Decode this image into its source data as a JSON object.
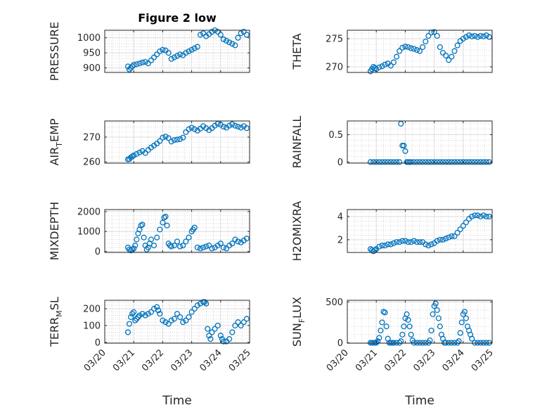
{
  "chart_data": [
    {
      "type": "scatter",
      "title": "Figure 2 low",
      "xlabel": "",
      "ylabel": "PRESSURE",
      "ylabel_sub": "",
      "ylabel_tail": "",
      "ylim": [
        885,
        1025
      ],
      "yticks": [
        900,
        950,
        1000
      ],
      "xlim": [
        0,
        5
      ],
      "xticks": [],
      "xticklabels": [],
      "grid": "on",
      "x": [
        0.8,
        0.85,
        0.9,
        0.95,
        1.0,
        1.1,
        1.2,
        1.3,
        1.4,
        1.5,
        1.6,
        1.7,
        1.8,
        1.9,
        2.0,
        2.1,
        2.2,
        2.3,
        2.4,
        2.5,
        2.6,
        2.7,
        2.8,
        2.9,
        3.0,
        3.1,
        3.2,
        3.3,
        3.4,
        3.5,
        3.6,
        3.7,
        3.8,
        3.9,
        4.0,
        4.1,
        4.2,
        4.3,
        4.4,
        4.5,
        4.6,
        4.7,
        4.8,
        4.9
      ],
      "y": [
        905,
        895,
        900,
        905,
        910,
        912,
        915,
        918,
        920,
        915,
        925,
        935,
        945,
        955,
        960,
        958,
        950,
        930,
        935,
        940,
        945,
        942,
        950,
        955,
        960,
        965,
        970,
        1010,
        1015,
        1005,
        1012,
        1020,
        1025,
        1020,
        1010,
        995,
        990,
        985,
        980,
        975,
        1000,
        1015,
        1020,
        1010
      ]
    },
    {
      "type": "scatter",
      "title": "",
      "xlabel": "",
      "ylabel": "THETA",
      "ylabel_sub": "",
      "ylabel_tail": "",
      "ylim": [
        269,
        276.5
      ],
      "yticks": [
        270,
        275
      ],
      "xlim": [
        0,
        5
      ],
      "xticks": [],
      "xticklabels": [],
      "grid": "on",
      "x": [
        0.8,
        0.85,
        0.9,
        0.95,
        1.0,
        1.1,
        1.2,
        1.3,
        1.4,
        1.5,
        1.6,
        1.7,
        1.8,
        1.9,
        2.0,
        2.1,
        2.2,
        2.3,
        2.4,
        2.5,
        2.6,
        2.7,
        2.8,
        2.9,
        3.0,
        3.1,
        3.2,
        3.3,
        3.4,
        3.5,
        3.6,
        3.7,
        3.8,
        3.9,
        4.0,
        4.1,
        4.2,
        4.3,
        4.4,
        4.5,
        4.6,
        4.7,
        4.8,
        4.9
      ],
      "y": [
        269.2,
        269.6,
        270.0,
        269.8,
        269.6,
        269.9,
        270.1,
        270.4,
        270.6,
        270.2,
        270.8,
        271.8,
        272.8,
        273.4,
        273.6,
        273.5,
        273.3,
        273.2,
        273.0,
        272.8,
        273.5,
        274.5,
        275.5,
        276.1,
        276.2,
        275.5,
        273.5,
        272.5,
        272.0,
        271.2,
        271.8,
        272.8,
        273.8,
        274.6,
        275.0,
        275.3,
        275.6,
        275.4,
        275.5,
        275.3,
        275.5,
        275.4,
        275.6,
        275.3
      ]
    },
    {
      "type": "scatter",
      "title": "",
      "xlabel": "",
      "ylabel": "AIR",
      "ylabel_sub": "T",
      "ylabel_tail": "EMP",
      "ylim": [
        259.5,
        276.5
      ],
      "yticks": [
        260,
        270
      ],
      "xlim": [
        0,
        5
      ],
      "xticks": [],
      "xticklabels": [],
      "grid": "on",
      "x": [
        0.8,
        0.85,
        0.9,
        0.95,
        1.0,
        1.1,
        1.2,
        1.3,
        1.4,
        1.5,
        1.6,
        1.7,
        1.8,
        1.9,
        2.0,
        2.1,
        2.2,
        2.3,
        2.4,
        2.5,
        2.6,
        2.7,
        2.8,
        2.9,
        3.0,
        3.1,
        3.2,
        3.3,
        3.4,
        3.5,
        3.6,
        3.7,
        3.8,
        3.9,
        4.0,
        4.1,
        4.2,
        4.3,
        4.4,
        4.5,
        4.6,
        4.7,
        4.8,
        4.9
      ],
      "y": [
        261.0,
        261.2,
        261.8,
        262.2,
        262.6,
        263.2,
        263.8,
        264.4,
        263.6,
        264.8,
        265.8,
        266.6,
        267.4,
        268.4,
        269.8,
        270.2,
        269.6,
        268.2,
        268.8,
        269.0,
        269.2,
        269.8,
        272.0,
        273.2,
        273.8,
        273.2,
        272.6,
        273.4,
        274.4,
        273.6,
        272.8,
        273.6,
        274.6,
        275.4,
        275.0,
        274.2,
        273.8,
        274.6,
        275.2,
        274.6,
        274.2,
        273.8,
        274.4,
        273.6
      ]
    },
    {
      "type": "scatter",
      "title": "",
      "xlabel": "",
      "ylabel": "RAINFALL",
      "ylabel_sub": "",
      "ylabel_tail": "",
      "ylim": [
        -0.02,
        0.75
      ],
      "yticks": [
        0,
        0.5
      ],
      "xlim": [
        0,
        5
      ],
      "xticks": [],
      "xticklabels": [],
      "grid": "on",
      "x": [
        0.8,
        0.9,
        1.0,
        1.1,
        1.2,
        1.3,
        1.4,
        1.5,
        1.6,
        1.7,
        1.8,
        1.85,
        1.9,
        1.95,
        2.0,
        2.05,
        2.1,
        2.15,
        2.2,
        2.3,
        2.4,
        2.5,
        2.6,
        2.7,
        2.8,
        2.9,
        3.0,
        3.1,
        3.2,
        3.3,
        3.4,
        3.5,
        3.6,
        3.7,
        3.8,
        3.9,
        4.0,
        4.1,
        4.2,
        4.3,
        4.4,
        4.5,
        4.6,
        4.7,
        4.8,
        4.9
      ],
      "y": [
        0,
        0,
        0,
        0,
        0,
        0,
        0,
        0,
        0,
        0,
        0,
        0.7,
        0.3,
        0.3,
        0.2,
        0,
        0,
        0,
        0,
        0,
        0,
        0,
        0,
        0,
        0,
        0,
        0,
        0,
        0,
        0,
        0,
        0,
        0,
        0,
        0,
        0,
        0,
        0,
        0,
        0,
        0,
        0,
        0,
        0,
        0,
        0
      ]
    },
    {
      "type": "scatter",
      "title": "",
      "xlabel": "",
      "ylabel": "MIXDEPTH",
      "ylabel_sub": "",
      "ylabel_tail": "",
      "ylim": [
        -50,
        2100
      ],
      "yticks": [
        0,
        1000,
        2000
      ],
      "xlim": [
        0,
        5
      ],
      "xticks": [],
      "xticklabels": [],
      "grid": "on",
      "x": [
        0.8,
        0.85,
        0.9,
        0.95,
        1.0,
        1.05,
        1.1,
        1.15,
        1.2,
        1.25,
        1.3,
        1.35,
        1.4,
        1.45,
        1.5,
        1.55,
        1.6,
        1.7,
        1.8,
        1.9,
        2.0,
        2.05,
        2.1,
        2.15,
        2.2,
        2.25,
        2.3,
        2.4,
        2.5,
        2.6,
        2.7,
        2.8,
        2.9,
        3.0,
        3.05,
        3.1,
        3.2,
        3.3,
        3.4,
        3.5,
        3.6,
        3.7,
        3.8,
        3.9,
        4.0,
        4.1,
        4.2,
        4.3,
        4.4,
        4.5,
        4.6,
        4.7,
        4.8,
        4.9
      ],
      "y": [
        200,
        100,
        50,
        100,
        150,
        300,
        600,
        900,
        1100,
        1300,
        1350,
        700,
        300,
        100,
        200,
        400,
        600,
        300,
        700,
        1100,
        1450,
        1700,
        1750,
        1300,
        400,
        300,
        250,
        300,
        500,
        250,
        300,
        500,
        700,
        1000,
        1100,
        1200,
        200,
        150,
        200,
        250,
        300,
        150,
        200,
        300,
        400,
        200,
        150,
        300,
        400,
        600,
        500,
        450,
        550,
        650
      ]
    },
    {
      "type": "scatter",
      "title": "",
      "xlabel": "",
      "ylabel": "H2OMIXRA",
      "ylabel_sub": "",
      "ylabel_tail": "",
      "ylim": [
        0.9,
        4.6
      ],
      "yticks": [
        2,
        4
      ],
      "xlim": [
        0,
        5
      ],
      "xticks": [],
      "xticklabels": [],
      "grid": "on",
      "x": [
        0.8,
        0.85,
        0.9,
        0.95,
        1.0,
        1.1,
        1.2,
        1.3,
        1.4,
        1.5,
        1.6,
        1.7,
        1.8,
        1.9,
        2.0,
        2.1,
        2.2,
        2.3,
        2.4,
        2.5,
        2.6,
        2.7,
        2.8,
        2.9,
        3.0,
        3.1,
        3.2,
        3.3,
        3.4,
        3.5,
        3.6,
        3.7,
        3.8,
        3.9,
        4.0,
        4.1,
        4.2,
        4.3,
        4.4,
        4.5,
        4.6,
        4.7,
        4.8,
        4.9
      ],
      "y": [
        1.2,
        1.1,
        1.0,
        1.1,
        1.2,
        1.4,
        1.5,
        1.5,
        1.6,
        1.6,
        1.7,
        1.8,
        1.8,
        1.9,
        1.9,
        1.8,
        1.8,
        1.9,
        1.8,
        1.8,
        1.8,
        1.6,
        1.5,
        1.6,
        1.7,
        1.9,
        2.0,
        2.0,
        2.1,
        2.2,
        2.3,
        2.3,
        2.6,
        2.9,
        3.2,
        3.5,
        3.8,
        4.0,
        4.1,
        4.1,
        4.0,
        4.1,
        4.0,
        4.0
      ]
    },
    {
      "type": "scatter",
      "title": "",
      "xlabel": "Time",
      "ylabel": "TERR",
      "ylabel_sub": "M",
      "ylabel_tail": "SL",
      "ylim": [
        -5,
        250
      ],
      "yticks": [
        0,
        100,
        200
      ],
      "xlim": [
        0,
        5
      ],
      "xticks": [
        0,
        1,
        2,
        3,
        4,
        5
      ],
      "xticklabels": [
        "03/20",
        "03/21",
        "03/22",
        "03/23",
        "03/24",
        "03/25"
      ],
      "grid": "on",
      "x": [
        0.8,
        0.85,
        0.9,
        0.95,
        1.0,
        1.05,
        1.1,
        1.15,
        1.2,
        1.3,
        1.4,
        1.5,
        1.6,
        1.7,
        1.8,
        1.85,
        1.9,
        2.0,
        2.1,
        2.2,
        2.3,
        2.4,
        2.5,
        2.6,
        2.7,
        2.8,
        2.9,
        3.0,
        3.1,
        3.2,
        3.3,
        3.4,
        3.45,
        3.5,
        3.55,
        3.6,
        3.65,
        3.7,
        3.8,
        3.9,
        4.0,
        4.05,
        4.1,
        4.2,
        4.3,
        4.4,
        4.5,
        4.6,
        4.7,
        4.8,
        4.9
      ],
      "y": [
        60,
        110,
        150,
        170,
        180,
        130,
        140,
        150,
        160,
        170,
        160,
        170,
        180,
        200,
        210,
        190,
        170,
        130,
        120,
        110,
        130,
        140,
        170,
        150,
        120,
        130,
        150,
        180,
        200,
        220,
        230,
        240,
        240,
        230,
        80,
        40,
        20,
        60,
        80,
        100,
        40,
        20,
        5,
        5,
        20,
        60,
        100,
        120,
        100,
        120,
        140
      ]
    },
    {
      "type": "scatter",
      "title": "",
      "xlabel": "Time",
      "ylabel": "SUN",
      "ylabel_sub": "F",
      "ylabel_tail": "LUX",
      "ylim": [
        -5,
        520
      ],
      "yticks": [
        0,
        500
      ],
      "xlim": [
        0,
        5
      ],
      "xticks": [
        0,
        1,
        2,
        3,
        4,
        5
      ],
      "xticklabels": [
        "03/20",
        "03/21",
        "03/22",
        "03/23",
        "03/24",
        "03/25"
      ],
      "grid": "on",
      "x": [
        0.8,
        0.85,
        0.9,
        0.95,
        1.0,
        1.05,
        1.1,
        1.15,
        1.2,
        1.25,
        1.3,
        1.35,
        1.4,
        1.45,
        1.5,
        1.55,
        1.6,
        1.7,
        1.8,
        1.85,
        1.9,
        1.95,
        2.0,
        2.05,
        2.1,
        2.15,
        2.2,
        2.25,
        2.3,
        2.4,
        2.5,
        2.6,
        2.7,
        2.8,
        2.85,
        2.9,
        2.95,
        3.0,
        3.05,
        3.1,
        3.15,
        3.2,
        3.25,
        3.3,
        3.35,
        3.4,
        3.5,
        3.6,
        3.7,
        3.8,
        3.85,
        3.9,
        3.95,
        4.0,
        4.05,
        4.1,
        4.15,
        4.2,
        4.25,
        4.3,
        4.4,
        4.5,
        4.6,
        4.7,
        4.8,
        4.9
      ],
      "y": [
        0,
        0,
        0,
        0,
        0,
        20,
        60,
        150,
        250,
        380,
        370,
        200,
        50,
        0,
        0,
        0,
        0,
        0,
        0,
        20,
        100,
        200,
        300,
        350,
        280,
        200,
        100,
        30,
        0,
        0,
        0,
        0,
        0,
        0,
        30,
        150,
        350,
        450,
        480,
        400,
        300,
        200,
        100,
        50,
        0,
        0,
        0,
        0,
        0,
        0,
        20,
        120,
        250,
        350,
        380,
        300,
        200,
        150,
        100,
        50,
        0,
        0,
        0,
        0,
        0,
        0
      ]
    }
  ]
}
